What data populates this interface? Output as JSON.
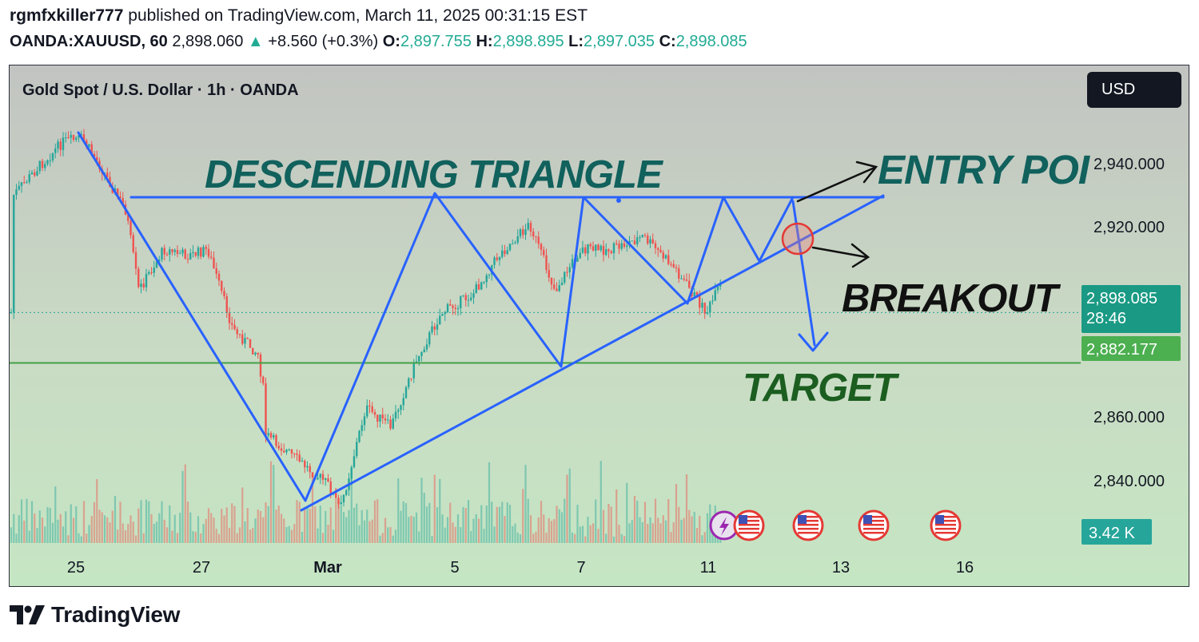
{
  "header": {
    "author": "rgmfxkiller777",
    "published_text": "published on TradingView.com, March 11, 2025 00:31:15 EST",
    "symbol": "OANDA:XAUUSD, 60",
    "last": "2,898.060",
    "change_arrow": "▲",
    "change": "+8.560 (+0.3%)",
    "o_label": "O:",
    "o": "2,897.755",
    "h_label": "H:",
    "h": "2,898.895",
    "l_label": "L:",
    "l": "2,897.035",
    "c_label": "C:",
    "c": "2,898.085"
  },
  "chart": {
    "pane_title": "Gold Spot / U.S. Dollar · 1h · OANDA",
    "currency_button": "USD",
    "price_badge": "2,898.085",
    "countdown": "28:46",
    "target_badge": "2,882.177",
    "volume_badge": "3.42 K",
    "annotations": {
      "pattern": "DESCENDING TRIANGLE",
      "entry": "ENTRY POI",
      "breakout": "BREAKOUT",
      "target": "TARGET"
    }
  },
  "chart_data": {
    "type": "candlestick",
    "title": "Gold Spot / U.S. Dollar · 1h · OANDA",
    "x_ticks": [
      "25",
      "27",
      "Mar",
      "5",
      "7",
      "11",
      "13",
      "16"
    ],
    "y_ticks": [
      2840,
      2860,
      2920,
      2940
    ],
    "ylim": [
      2816,
      2962
    ],
    "last_price": 2898.085,
    "target_level": 2882.177,
    "volume_last": "3.42 K",
    "price_path": [
      {
        "day": 24.0,
        "price": 2935
      },
      {
        "day": 24.4,
        "price": 2944
      },
      {
        "day": 24.8,
        "price": 2952
      },
      {
        "day": 25.1,
        "price": 2953
      },
      {
        "day": 25.4,
        "price": 2944
      },
      {
        "day": 25.8,
        "price": 2930
      },
      {
        "day": 26.0,
        "price": 2905
      },
      {
        "day": 26.4,
        "price": 2918
      },
      {
        "day": 26.8,
        "price": 2916
      },
      {
        "day": 27.1,
        "price": 2918
      },
      {
        "day": 27.5,
        "price": 2893
      },
      {
        "day": 27.9,
        "price": 2885
      },
      {
        "day": 28.3,
        "price": 2872
      },
      {
        "day": 28.7,
        "price": 2860
      },
      {
        "day": 29.0,
        "price": 2844
      },
      {
        "day": 29.2,
        "price": 2836
      },
      {
        "day": 29.6,
        "price": 2868
      },
      {
        "day": 30.0,
        "price": 2862
      },
      {
        "day": 30.4,
        "price": 2883
      },
      {
        "day": 30.8,
        "price": 2898
      },
      {
        "day": 31.3,
        "price": 2904
      },
      {
        "day": 31.7,
        "price": 2916
      },
      {
        "day": 32.2,
        "price": 2926
      },
      {
        "day": 32.6,
        "price": 2905
      },
      {
        "day": 33.0,
        "price": 2918
      },
      {
        "day": 33.5,
        "price": 2918
      },
      {
        "day": 34.0,
        "price": 2922
      },
      {
        "day": 34.5,
        "price": 2912
      },
      {
        "day": 35.0,
        "price": 2898
      },
      {
        "day": 35.4,
        "price": 2914
      },
      {
        "day": 36.0,
        "price": 2908
      },
      {
        "day": 36.6,
        "price": 2922
      },
      {
        "day": 37.0,
        "price": 2924
      },
      {
        "day": 37.6,
        "price": 2912
      },
      {
        "day": 38.1,
        "price": 2914
      },
      {
        "day": 38.6,
        "price": 2908
      },
      {
        "day": 39.0,
        "price": 2900
      },
      {
        "day": 39.3,
        "price": 2888
      },
      {
        "day": 39.5,
        "price": 2882
      },
      {
        "day": 39.7,
        "price": 2890
      },
      {
        "day": 39.9,
        "price": 2898
      }
    ]
  },
  "colors": {
    "up": "#26a69a",
    "down": "#ef5350",
    "drawing": "#2962ff",
    "target_line": "#43a047",
    "price_badge": "#1a9a84",
    "target_badge": "#4caf50"
  },
  "branding": {
    "logo_icon": "tradingview-logo-icon",
    "text": "TradingView"
  }
}
